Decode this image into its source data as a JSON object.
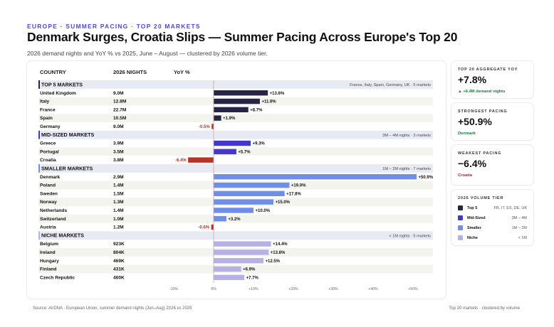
{
  "header": {
    "eyebrow": "EUROPE · SUMMER PACING · TOP 20 MARKETS",
    "title": "Denmark Surges, Croatia Slips — Summer Pacing Across Europe's Top 20",
    "subtitle": "2026 demand nights and YoY % vs 2025, June – August — clustered by 2026 volume tier."
  },
  "kpis": [
    {
      "label": "TOP 20 AGGREGATE YOY",
      "value": "+7.8%",
      "sub": "▲ +6.4M demand nights",
      "sub_color": "#15803d"
    },
    {
      "label": "STRONGEST PACING",
      "value": "+50.9%",
      "sub": "Denmark",
      "sub_color": "#15803d"
    },
    {
      "label": "WEAKEST PACING",
      "value": "−6.4%",
      "sub": "Croatia",
      "sub_color": "#b91c1c"
    }
  ],
  "legend": {
    "title": "2026 VOLUME TIER",
    "items": [
      {
        "name": "Top 5",
        "desc": "FR, IT, ES, DE, UK",
        "color": "#272447"
      },
      {
        "name": "Mid-Sized",
        "desc": "3M – 4M",
        "color": "#4338ca"
      },
      {
        "name": "Smaller",
        "desc": "1M – 2M",
        "color": "#6f8ee8"
      },
      {
        "name": "Niche",
        "desc": "< 1M",
        "color": "#b7b0e6"
      }
    ]
  },
  "footer": {
    "source": "Source: AirDNA · European Union, summer demand nights (Jun–Aug) 2026 vs 2025",
    "note": "Top 20 markets · clustered by volume"
  },
  "chart_data": {
    "type": "bar",
    "orientation": "horizontal",
    "columns": [
      "COUNTRY",
      "2026 NIGHTS",
      "YoY %"
    ],
    "xlim": [
      -20,
      55
    ],
    "ticks": [
      -10,
      0,
      10,
      20,
      30,
      40,
      50
    ],
    "tick_labels": [
      "-10%",
      "0%",
      "+10%",
      "+20%",
      "+30%",
      "+40%",
      "+50%"
    ],
    "negative_color": "#b83227",
    "groups": [
      {
        "name": "TOP 5 MARKETS",
        "note": "France, Italy, Spain, Germany, UK · 5 markets",
        "color": "#272447",
        "rows": [
          {
            "country": "United Kingdom",
            "nights": "9.0M",
            "yoy": 13.6,
            "label": "+13.6%"
          },
          {
            "country": "Italy",
            "nights": "12.8M",
            "yoy": 11.6,
            "label": "+11.6%"
          },
          {
            "country": "France",
            "nights": "22.7M",
            "yoy": 8.7,
            "label": "+8.7%"
          },
          {
            "country": "Spain",
            "nights": "10.5M",
            "yoy": 1.9,
            "label": "+1.9%"
          },
          {
            "country": "Germany",
            "nights": "9.0M",
            "yoy": -0.5,
            "label": "-0.5%"
          }
        ]
      },
      {
        "name": "MID-SIZED MARKETS",
        "note": "3M – 4M nights · 3 markets",
        "color": "#4338ca",
        "rows": [
          {
            "country": "Greece",
            "nights": "3.9M",
            "yoy": 9.3,
            "label": "+9.3%"
          },
          {
            "country": "Portugal",
            "nights": "3.5M",
            "yoy": 5.7,
            "label": "+5.7%"
          },
          {
            "country": "Croatia",
            "nights": "3.8M",
            "yoy": -6.4,
            "label": "-6.4%"
          }
        ]
      },
      {
        "name": "SMALLER MARKETS",
        "note": "1M – 2M nights · 7 markets",
        "color": "#6f8ee8",
        "rows": [
          {
            "country": "Denmark",
            "nights": "2.9M",
            "yoy": 50.9,
            "label": "+50.9%"
          },
          {
            "country": "Poland",
            "nights": "1.4M",
            "yoy": 19.0,
            "label": "+19.0%"
          },
          {
            "country": "Sweden",
            "nights": "1.5M",
            "yoy": 17.8,
            "label": "+17.8%"
          },
          {
            "country": "Norway",
            "nights": "1.3M",
            "yoy": 15.0,
            "label": "+15.0%"
          },
          {
            "country": "Netherlands",
            "nights": "1.4M",
            "yoy": 10.0,
            "label": "+10.0%"
          },
          {
            "country": "Switzerland",
            "nights": "1.0M",
            "yoy": 3.2,
            "label": "+3.2%"
          },
          {
            "country": "Austria",
            "nights": "1.2M",
            "yoy": -0.6,
            "label": "-0.6%"
          }
        ]
      },
      {
        "name": "NICHE MARKETS",
        "note": "< 1M nights · 5 markets",
        "color": "#b7b0e6",
        "rows": [
          {
            "country": "Belgium",
            "nights": "923K",
            "yoy": 14.4,
            "label": "+14.4%"
          },
          {
            "country": "Ireland",
            "nights": "804K",
            "yoy": 13.8,
            "label": "+13.8%"
          },
          {
            "country": "Hungary",
            "nights": "469K",
            "yoy": 12.5,
            "label": "+12.5%"
          },
          {
            "country": "Finland",
            "nights": "431K",
            "yoy": 6.9,
            "label": "+6.9%"
          },
          {
            "country": "Czech Republic",
            "nights": "460K",
            "yoy": 7.7,
            "label": "+7.7%"
          }
        ]
      }
    ]
  }
}
